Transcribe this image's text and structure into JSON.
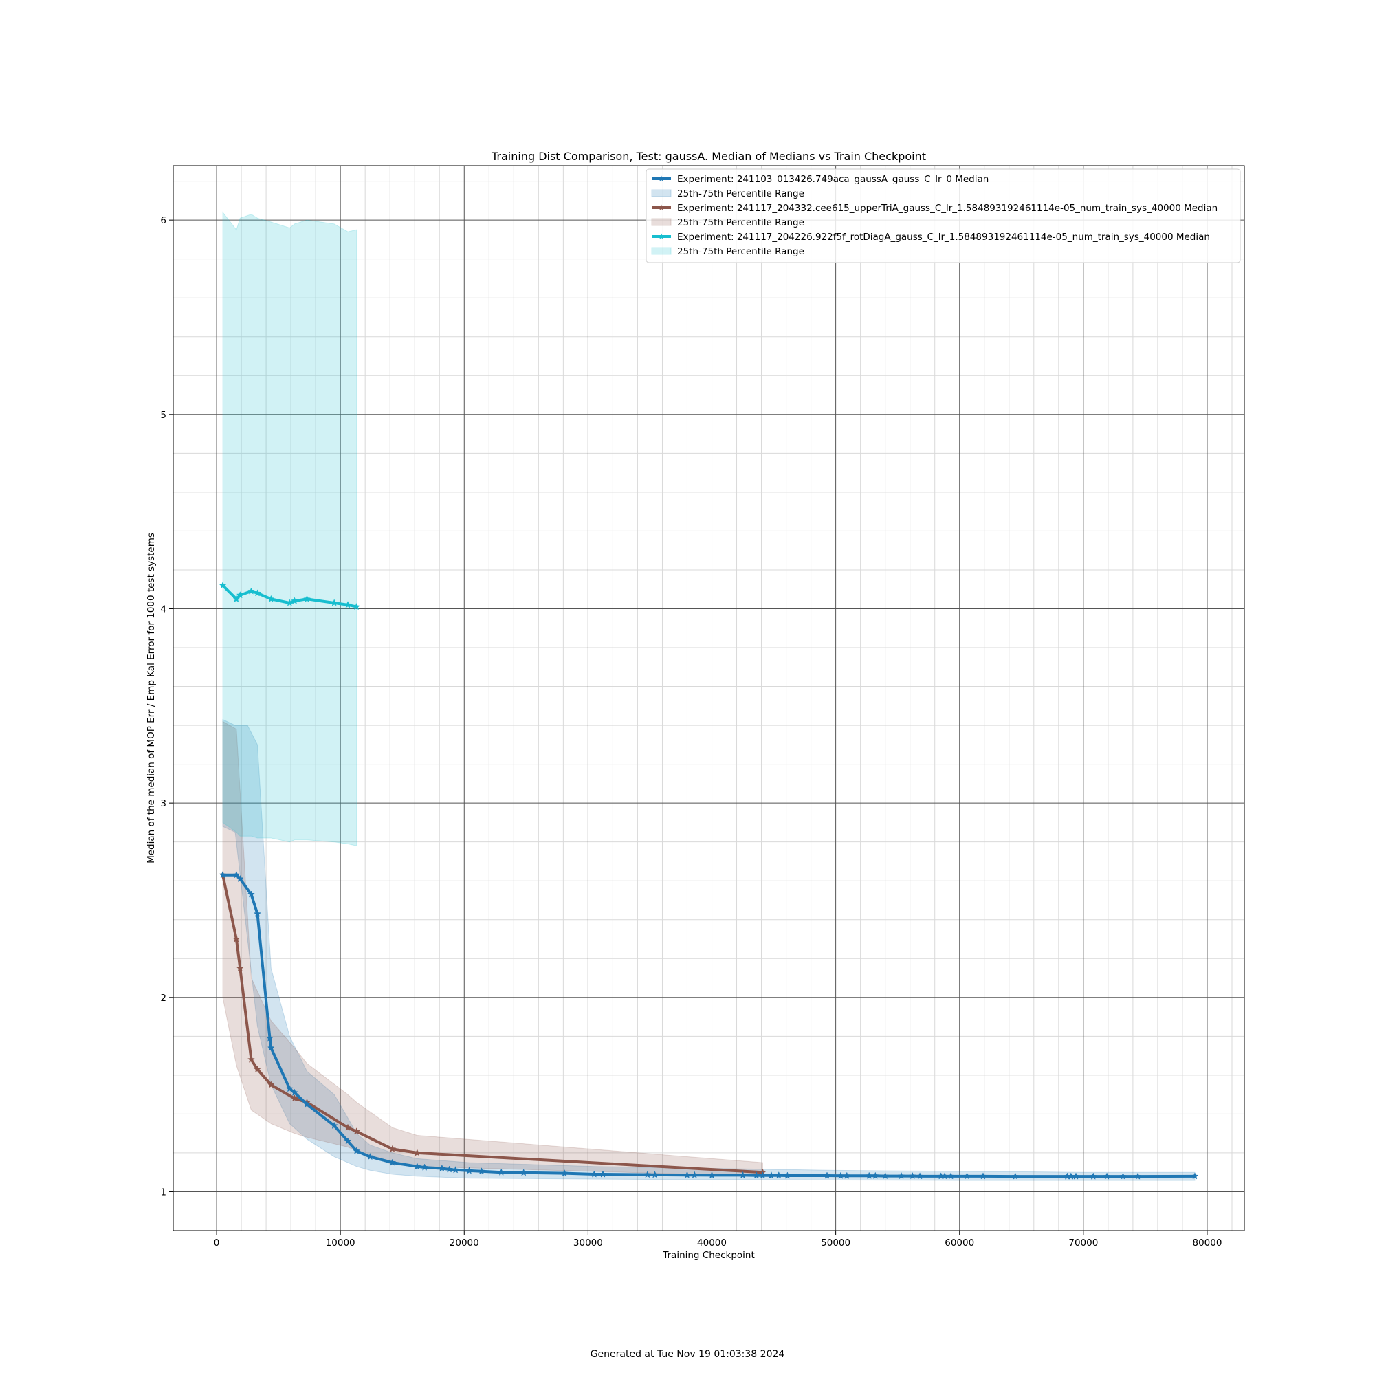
{
  "chart_data": {
    "type": "line",
    "title": "Training Dist Comparison, Test: gaussA. Median of Medians vs Train Checkpoint",
    "xlabel": "Training Checkpoint",
    "ylabel": "Median of the median of MOP Err / Emp Kal Error for 1000 test systems",
    "xlim": [
      -3500,
      83000
    ],
    "ylim": [
      0.8,
      6.28
    ],
    "xticks": [
      0,
      10000,
      20000,
      30000,
      40000,
      50000,
      60000,
      70000,
      80000
    ],
    "yticks": [
      1,
      2,
      3,
      4,
      5,
      6
    ],
    "grid": true,
    "legend_position": "top-right",
    "series": [
      {
        "name": "Experiment: 241103_013426.749aca_gaussA_gauss_C_lr_0 Median",
        "band_label": "25th-75th Percentile Range",
        "color": "#1f77b4",
        "x": [
          500,
          1600,
          1900,
          2800,
          3300,
          4300,
          4400,
          5900,
          6300,
          7300,
          9500,
          10600,
          11300,
          12400,
          14200,
          16200,
          16800,
          18200,
          18800,
          19300,
          20400,
          21400,
          23000,
          24800,
          28100,
          30500,
          31200,
          34800,
          35400,
          38000,
          38600,
          40000,
          42500,
          43600,
          44100,
          44800,
          45400,
          46100,
          49300,
          50400,
          50900,
          52700,
          53200,
          54000,
          55300,
          56200,
          56800,
          58500,
          58800,
          59300,
          60600,
          61900,
          64500,
          68700,
          69000,
          69400,
          70800,
          71900,
          73200,
          74400,
          79000
        ],
        "y": [
          2.63,
          2.63,
          2.61,
          2.53,
          2.43,
          1.79,
          1.74,
          1.53,
          1.51,
          1.45,
          1.34,
          1.26,
          1.21,
          1.18,
          1.15,
          1.13,
          1.125,
          1.12,
          1.115,
          1.112,
          1.108,
          1.105,
          1.1,
          1.098,
          1.095,
          1.09,
          1.09,
          1.088,
          1.087,
          1.086,
          1.086,
          1.085,
          1.085,
          1.084,
          1.084,
          1.084,
          1.084,
          1.083,
          1.083,
          1.082,
          1.082,
          1.082,
          1.082,
          1.081,
          1.081,
          1.081,
          1.08,
          1.08,
          1.08,
          1.08,
          1.08,
          1.08,
          1.079,
          1.079,
          1.079,
          1.079,
          1.079,
          1.079,
          1.079,
          1.079,
          1.08
        ],
        "band_x": [
          500,
          1500,
          2500,
          3300,
          4400,
          5900,
          7300,
          9500,
          10600,
          11300,
          12400,
          14200,
          16200,
          20400,
          30500,
          40000,
          50000,
          60000,
          70000,
          79000
        ],
        "band_low": [
          2.88,
          2.85,
          2.3,
          1.85,
          1.55,
          1.35,
          1.27,
          1.18,
          1.15,
          1.13,
          1.11,
          1.09,
          1.08,
          1.07,
          1.065,
          1.062,
          1.06,
          1.058,
          1.058,
          1.058
        ],
        "band_high": [
          3.43,
          3.4,
          3.4,
          3.3,
          2.15,
          1.8,
          1.62,
          1.5,
          1.38,
          1.3,
          1.24,
          1.2,
          1.17,
          1.15,
          1.13,
          1.12,
          1.11,
          1.105,
          1.1,
          1.1
        ]
      },
      {
        "name": "Experiment: 241117_204332.cee615_upperTriA_gauss_C_lr_1.584893192461114e-05_num_train_sys_40000 Median",
        "band_label": "25th-75th Percentile Range",
        "color": "#8c564b",
        "x": [
          500,
          1600,
          1900,
          2800,
          3300,
          4400,
          6300,
          7300,
          10600,
          11300,
          14200,
          16200,
          44100
        ],
        "y": [
          2.63,
          2.3,
          2.15,
          1.68,
          1.63,
          1.55,
          1.48,
          1.46,
          1.33,
          1.31,
          1.22,
          1.2,
          1.1
        ],
        "band_x": [
          500,
          1600,
          2800,
          4400,
          6300,
          7300,
          10600,
          11300,
          14200,
          16200,
          44100
        ],
        "band_low": [
          2.0,
          1.65,
          1.42,
          1.35,
          1.3,
          1.28,
          1.23,
          1.21,
          1.14,
          1.13,
          1.08
        ],
        "band_high": [
          3.42,
          3.38,
          2.1,
          1.88,
          1.74,
          1.66,
          1.5,
          1.46,
          1.33,
          1.29,
          1.15
        ]
      },
      {
        "name": "Experiment: 241117_204226.922f5f_rotDiagA_gauss_C_lr_1.584893192461114e-05_num_train_sys_40000 Median",
        "band_label": "25th-75th Percentile Range",
        "color": "#17becf",
        "x": [
          500,
          1600,
          1900,
          2800,
          3300,
          4400,
          5900,
          6300,
          7300,
          9500,
          10600,
          11300
        ],
        "y": [
          4.12,
          4.05,
          4.07,
          4.09,
          4.08,
          4.05,
          4.03,
          4.04,
          4.05,
          4.03,
          4.02,
          4.01
        ],
        "band_x": [
          500,
          1600,
          1900,
          2800,
          3300,
          4400,
          5900,
          6300,
          7300,
          9500,
          10600,
          11300
        ],
        "band_low": [
          2.9,
          2.85,
          2.83,
          2.83,
          2.82,
          2.82,
          2.8,
          2.81,
          2.81,
          2.8,
          2.79,
          2.78
        ],
        "band_high": [
          6.04,
          5.95,
          6.01,
          6.03,
          6.01,
          5.99,
          5.96,
          5.98,
          6.0,
          5.98,
          5.94,
          5.95
        ]
      }
    ]
  },
  "footer": {
    "generated_text": "Generated at Tue Nov 19 01:03:38 2024"
  }
}
